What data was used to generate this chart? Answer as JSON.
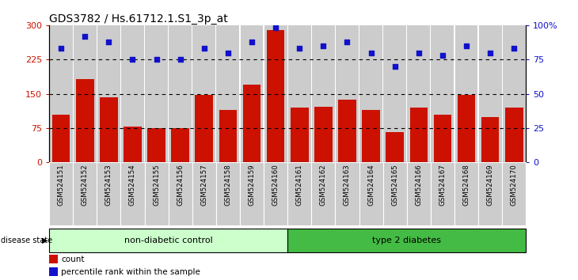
{
  "title": "GDS3782 / Hs.61712.1.S1_3p_at",
  "samples": [
    "GSM524151",
    "GSM524152",
    "GSM524153",
    "GSM524154",
    "GSM524155",
    "GSM524156",
    "GSM524157",
    "GSM524158",
    "GSM524159",
    "GSM524160",
    "GSM524161",
    "GSM524162",
    "GSM524163",
    "GSM524164",
    "GSM524165",
    "GSM524166",
    "GSM524167",
    "GSM524168",
    "GSM524169",
    "GSM524170"
  ],
  "counts": [
    105,
    183,
    142,
    78,
    75,
    75,
    148,
    115,
    170,
    290,
    120,
    122,
    138,
    115,
    67,
    120,
    105,
    148,
    100,
    120
  ],
  "percentiles": [
    83,
    92,
    88,
    75,
    75,
    75,
    83,
    80,
    88,
    98,
    83,
    85,
    88,
    80,
    70,
    80,
    78,
    85,
    80,
    83
  ],
  "group1_label": "non-diabetic control",
  "group2_label": "type 2 diabetes",
  "group1_count": 10,
  "bar_color": "#cc1100",
  "dot_color": "#1111cc",
  "group1_color": "#ccffcc",
  "group2_color": "#44bb44",
  "col_bg_color": "#cccccc",
  "ylim_left": [
    0,
    300
  ],
  "ylim_right": [
    0,
    100
  ],
  "yticks_left": [
    0,
    75,
    150,
    225,
    300
  ],
  "ytick_labels_left": [
    "0",
    "75",
    "150",
    "225",
    "300"
  ],
  "yticks_right": [
    0,
    25,
    50,
    75,
    100
  ],
  "ytick_labels_right": [
    "0",
    "25",
    "50",
    "75",
    "100%"
  ],
  "hlines": [
    75,
    150,
    225
  ]
}
